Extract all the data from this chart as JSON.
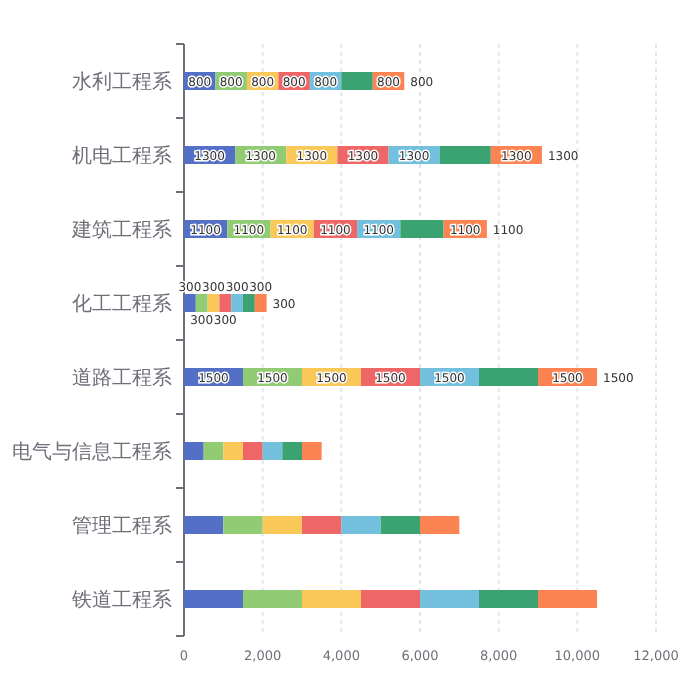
{
  "chart_data": {
    "type": "bar",
    "orientation": "horizontal",
    "stacked": true,
    "categories": [
      "水利工程系",
      "机电工程系",
      "建筑工程系",
      "化工工程系",
      "道路工程系",
      "电气与信息工程系",
      "管理工程系",
      "铁道工程系"
    ],
    "series": [
      {
        "color": "#5470c6",
        "values": [
          800,
          1300,
          1100,
          300,
          1500,
          500,
          1000,
          1500
        ],
        "value_labels": [
          "800",
          "1300",
          "1100",
          "300",
          "1500",
          null,
          null,
          null
        ]
      },
      {
        "color": "#91cc75",
        "values": [
          800,
          1300,
          1100,
          300,
          1500,
          500,
          1000,
          1500
        ],
        "value_labels": [
          "800",
          "1300",
          "1100",
          "300",
          "1500",
          null,
          null,
          null
        ]
      },
      {
        "color": "#fac858",
        "values": [
          800,
          1300,
          1100,
          300,
          1500,
          500,
          1000,
          1500
        ],
        "value_labels": [
          "800",
          "1300",
          "1100",
          "300",
          "1500",
          null,
          null,
          null
        ]
      },
      {
        "color": "#ee6666",
        "values": [
          800,
          1300,
          1100,
          300,
          1500,
          500,
          1000,
          1500
        ],
        "value_labels": [
          "800",
          "1300",
          "1100",
          "300",
          "1500",
          null,
          null,
          null
        ]
      },
      {
        "color": "#73c0de",
        "values": [
          800,
          1300,
          1100,
          300,
          1500,
          500,
          1000,
          1500
        ],
        "value_labels": [
          "800",
          "1300",
          "1100",
          "300",
          "1500",
          null,
          null,
          null
        ]
      },
      {
        "color": "#3ba272",
        "values": [
          800,
          1300,
          1100,
          300,
          1500,
          500,
          1000,
          1500
        ],
        "value_labels": [
          null,
          null,
          null,
          null,
          null,
          null,
          null,
          null
        ]
      },
      {
        "color": "#fc8452",
        "values": [
          800,
          1300,
          1100,
          300,
          1500,
          500,
          1000,
          1500
        ],
        "value_labels": [
          "800",
          "1300",
          "1100",
          "300",
          "1500",
          null,
          null,
          null
        ]
      }
    ],
    "annotations": [
      {
        "text": "800",
        "x": 5600,
        "y": "水利工程系"
      },
      {
        "text": "1300",
        "x": 9100,
        "y": "机电工程系"
      },
      {
        "text": "1100",
        "x": 7700,
        "y": "建筑工程系"
      },
      {
        "text": "300",
        "x": 2100,
        "y": "化工工程系"
      },
      {
        "text": "1500",
        "x": 10500,
        "y": "道路工程系"
      }
    ],
    "xlim": [
      0,
      12000
    ],
    "xticks": [
      {
        "value": 0,
        "label": "0"
      },
      {
        "value": 2000,
        "label": "2,000"
      },
      {
        "value": 4000,
        "label": "4,000"
      },
      {
        "value": 6000,
        "label": "6,000"
      },
      {
        "value": 8000,
        "label": "8,000"
      },
      {
        "value": 10000,
        "label": "10,000"
      },
      {
        "value": 12000,
        "label": "12,000"
      }
    ],
    "grid": "x"
  }
}
